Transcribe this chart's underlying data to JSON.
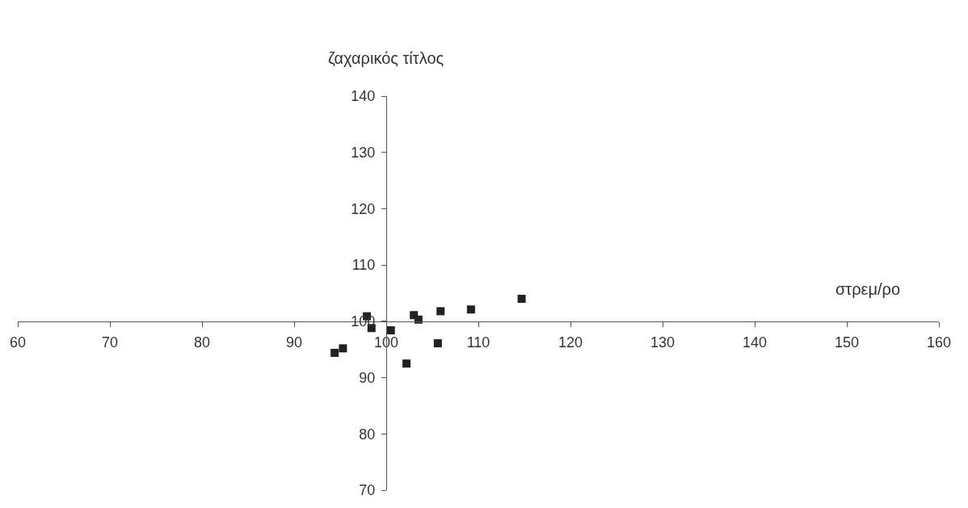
{
  "chart_data": {
    "type": "scatter",
    "xlabel": "στρεμ/ρο",
    "ylabel": "ζαχαρικός τίτλος",
    "series": [
      {
        "color": "#222222",
        "x": [
          97.9,
          98.4,
          100.5,
          103.0,
          103.5,
          105.9,
          105.6,
          102.2,
          109.2,
          114.7,
          95.3,
          94.4
        ],
        "values": [
          100.9,
          98.8,
          98.4,
          101.1,
          100.3,
          101.8,
          96.1,
          92.5,
          102.1,
          104.0,
          95.2,
          94.4
        ]
      }
    ],
    "marker": "square",
    "xlim": [
      60,
      160
    ],
    "xticks": [
      60,
      70,
      80,
      90,
      100,
      110,
      120,
      130,
      140,
      150,
      160
    ],
    "ylim": [
      70,
      140
    ],
    "yticks": [
      70,
      80,
      90,
      100,
      110,
      120,
      130,
      140
    ],
    "legend": false
  }
}
